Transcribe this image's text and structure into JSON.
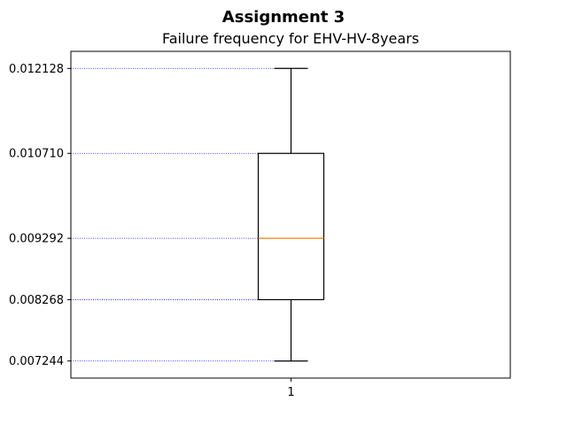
{
  "figure": {
    "suptitle": "Assignment 3",
    "title": "Failure frequency for EHV-HV-8years"
  },
  "chart_data": {
    "type": "box",
    "title": "Failure frequency for EHV-HV-8years",
    "categories": [
      "1"
    ],
    "box": {
      "whisker_low": 0.007244,
      "q1": 0.008268,
      "median": 0.009292,
      "q3": 0.01071,
      "whisker_high": 0.012128
    },
    "yticks": [
      "0.007244",
      "0.008268",
      "0.009292",
      "0.010710",
      "0.012128"
    ],
    "ylim": [
      0.006959,
      0.012413
    ],
    "reference_lines": [
      0.007244,
      0.008268,
      0.009292,
      0.01071,
      0.012128
    ],
    "grid": false,
    "colors": {
      "box": "#000000",
      "median": "#ff7f0e",
      "reference_line": "#0000ff"
    }
  }
}
